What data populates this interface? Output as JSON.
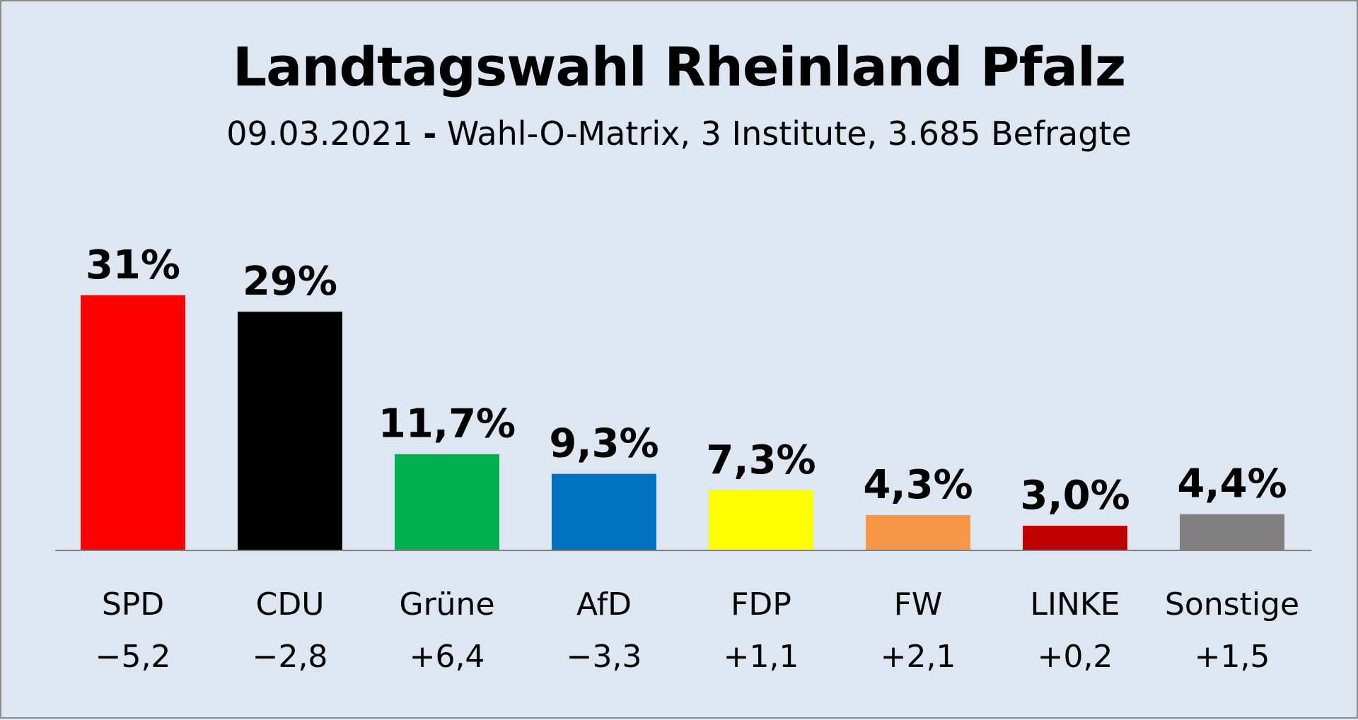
{
  "title": "Landtagswahl Rheinland Pfalz",
  "subtitle": {
    "date": "09.03.2021",
    "separator": "-",
    "rest": "Wahl-O-Matrix, 3 Institute, 3.685 Befragte"
  },
  "chart_data": {
    "type": "bar",
    "title": "Landtagswahl Rheinland Pfalz",
    "subtitle": "09.03.2021 - Wahl-O-Matrix, 3 Institute, 3.685 Befragte",
    "categories": [
      "SPD",
      "CDU",
      "Grüne",
      "AfD",
      "FDP",
      "FW",
      "LINKE",
      "Sonstige"
    ],
    "values": [
      31,
      29,
      11.7,
      9.3,
      7.3,
      4.3,
      3.0,
      4.4
    ],
    "value_labels": [
      "31%",
      "29%",
      "11,7%",
      "9,3%",
      "7,3%",
      "4,3%",
      "3,0%",
      "4,4%"
    ],
    "changes": [
      "−5,2",
      "−2,8",
      "+6,4",
      "−3,3",
      "+1,1",
      "+2,1",
      "+0,2",
      "+1,5"
    ],
    "colors": [
      "#ff0000",
      "#000000",
      "#00b050",
      "#0070c0",
      "#ffff00",
      "#f79646",
      "#c00000",
      "#808080"
    ],
    "xlabel": "",
    "ylabel": "",
    "ylim": [
      0,
      35
    ],
    "grid": false,
    "legend": "none"
  }
}
